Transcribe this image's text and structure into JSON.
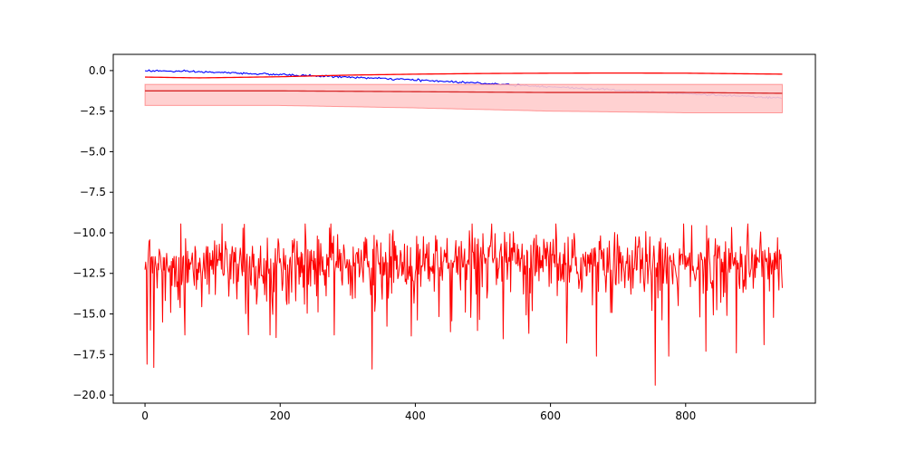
{
  "chart_data": {
    "type": "line",
    "title": "",
    "xlabel": "",
    "ylabel": "",
    "xlim": [
      -47,
      992
    ],
    "ylim": [
      -20.5,
      1.0
    ],
    "xticks": [
      0,
      200,
      400,
      600,
      800
    ],
    "xtick_labels": [
      "0",
      "200",
      "400",
      "600",
      "800"
    ],
    "yticks": [
      0.0,
      -2.5,
      -5.0,
      -7.5,
      -10.0,
      -12.5,
      -15.0,
      -17.5,
      -20.0
    ],
    "ytick_labels": [
      "0.0",
      "−2.5",
      "−5.0",
      "−7.5",
      "−10.0",
      "−12.5",
      "−15.0",
      "−17.5",
      "−20.0"
    ],
    "grid": false,
    "legend": "none",
    "colors": {
      "blue": "#0000ff",
      "red": "#ff0000",
      "red_band": "#ffcccc",
      "dark_red": "#d62728"
    },
    "series": [
      {
        "color": "#0000ff",
        "style": "noisy-trend",
        "x": [
          0,
          100,
          200,
          300,
          400,
          500,
          600,
          700,
          800,
          943
        ],
        "values": [
          0.0,
          -0.1,
          -0.25,
          -0.4,
          -0.58,
          -0.78,
          -1.0,
          -1.2,
          -1.42,
          -1.7
        ],
        "noise_amplitude": 0.06
      },
      {
        "color": "#ff0000",
        "style": "smooth",
        "x": [
          0,
          80,
          200,
          300,
          400,
          500,
          600,
          700,
          800,
          943
        ],
        "values": [
          -0.4,
          -0.45,
          -0.38,
          -0.28,
          -0.22,
          -0.18,
          -0.16,
          -0.15,
          -0.16,
          -0.22
        ]
      },
      {
        "color": "#d62728",
        "style": "smooth-mean-with-band",
        "x": [
          0,
          200,
          400,
          600,
          800,
          943
        ],
        "values": [
          -1.25,
          -1.25,
          -1.3,
          -1.35,
          -1.35,
          -1.4
        ],
        "band_lower": [
          -2.15,
          -2.15,
          -2.3,
          -2.5,
          -2.6,
          -2.6
        ],
        "band_upper": [
          -0.85,
          -0.85,
          -0.85,
          -0.85,
          -0.85,
          -0.85
        ]
      },
      {
        "color": "#ff0000",
        "style": "noise",
        "x_range": [
          0,
          943
        ],
        "n_points": 944,
        "mean": -11.9,
        "spread": 1.1,
        "max": -9.7,
        "min": -19.4,
        "dips": [
          {
            "x": 3,
            "value": -18.1
          },
          {
            "x": 8,
            "value": -16.0
          },
          {
            "x": 13,
            "value": -18.3
          },
          {
            "x": 26,
            "value": -15.5
          },
          {
            "x": 59,
            "value": -16.3
          },
          {
            "x": 185,
            "value": -16.3
          },
          {
            "x": 280,
            "value": -16.3
          },
          {
            "x": 336,
            "value": -18.4
          },
          {
            "x": 452,
            "value": -16.1
          },
          {
            "x": 568,
            "value": -16.2
          },
          {
            "x": 624,
            "value": -16.8
          },
          {
            "x": 668,
            "value": -17.6
          },
          {
            "x": 755,
            "value": -19.4
          },
          {
            "x": 775,
            "value": -17.6
          },
          {
            "x": 830,
            "value": -17.3
          },
          {
            "x": 875,
            "value": -17.4
          }
        ],
        "peaks": [
          {
            "x": 273,
            "value": -9.7
          },
          {
            "x": 540,
            "value": -10.05
          }
        ]
      }
    ]
  }
}
